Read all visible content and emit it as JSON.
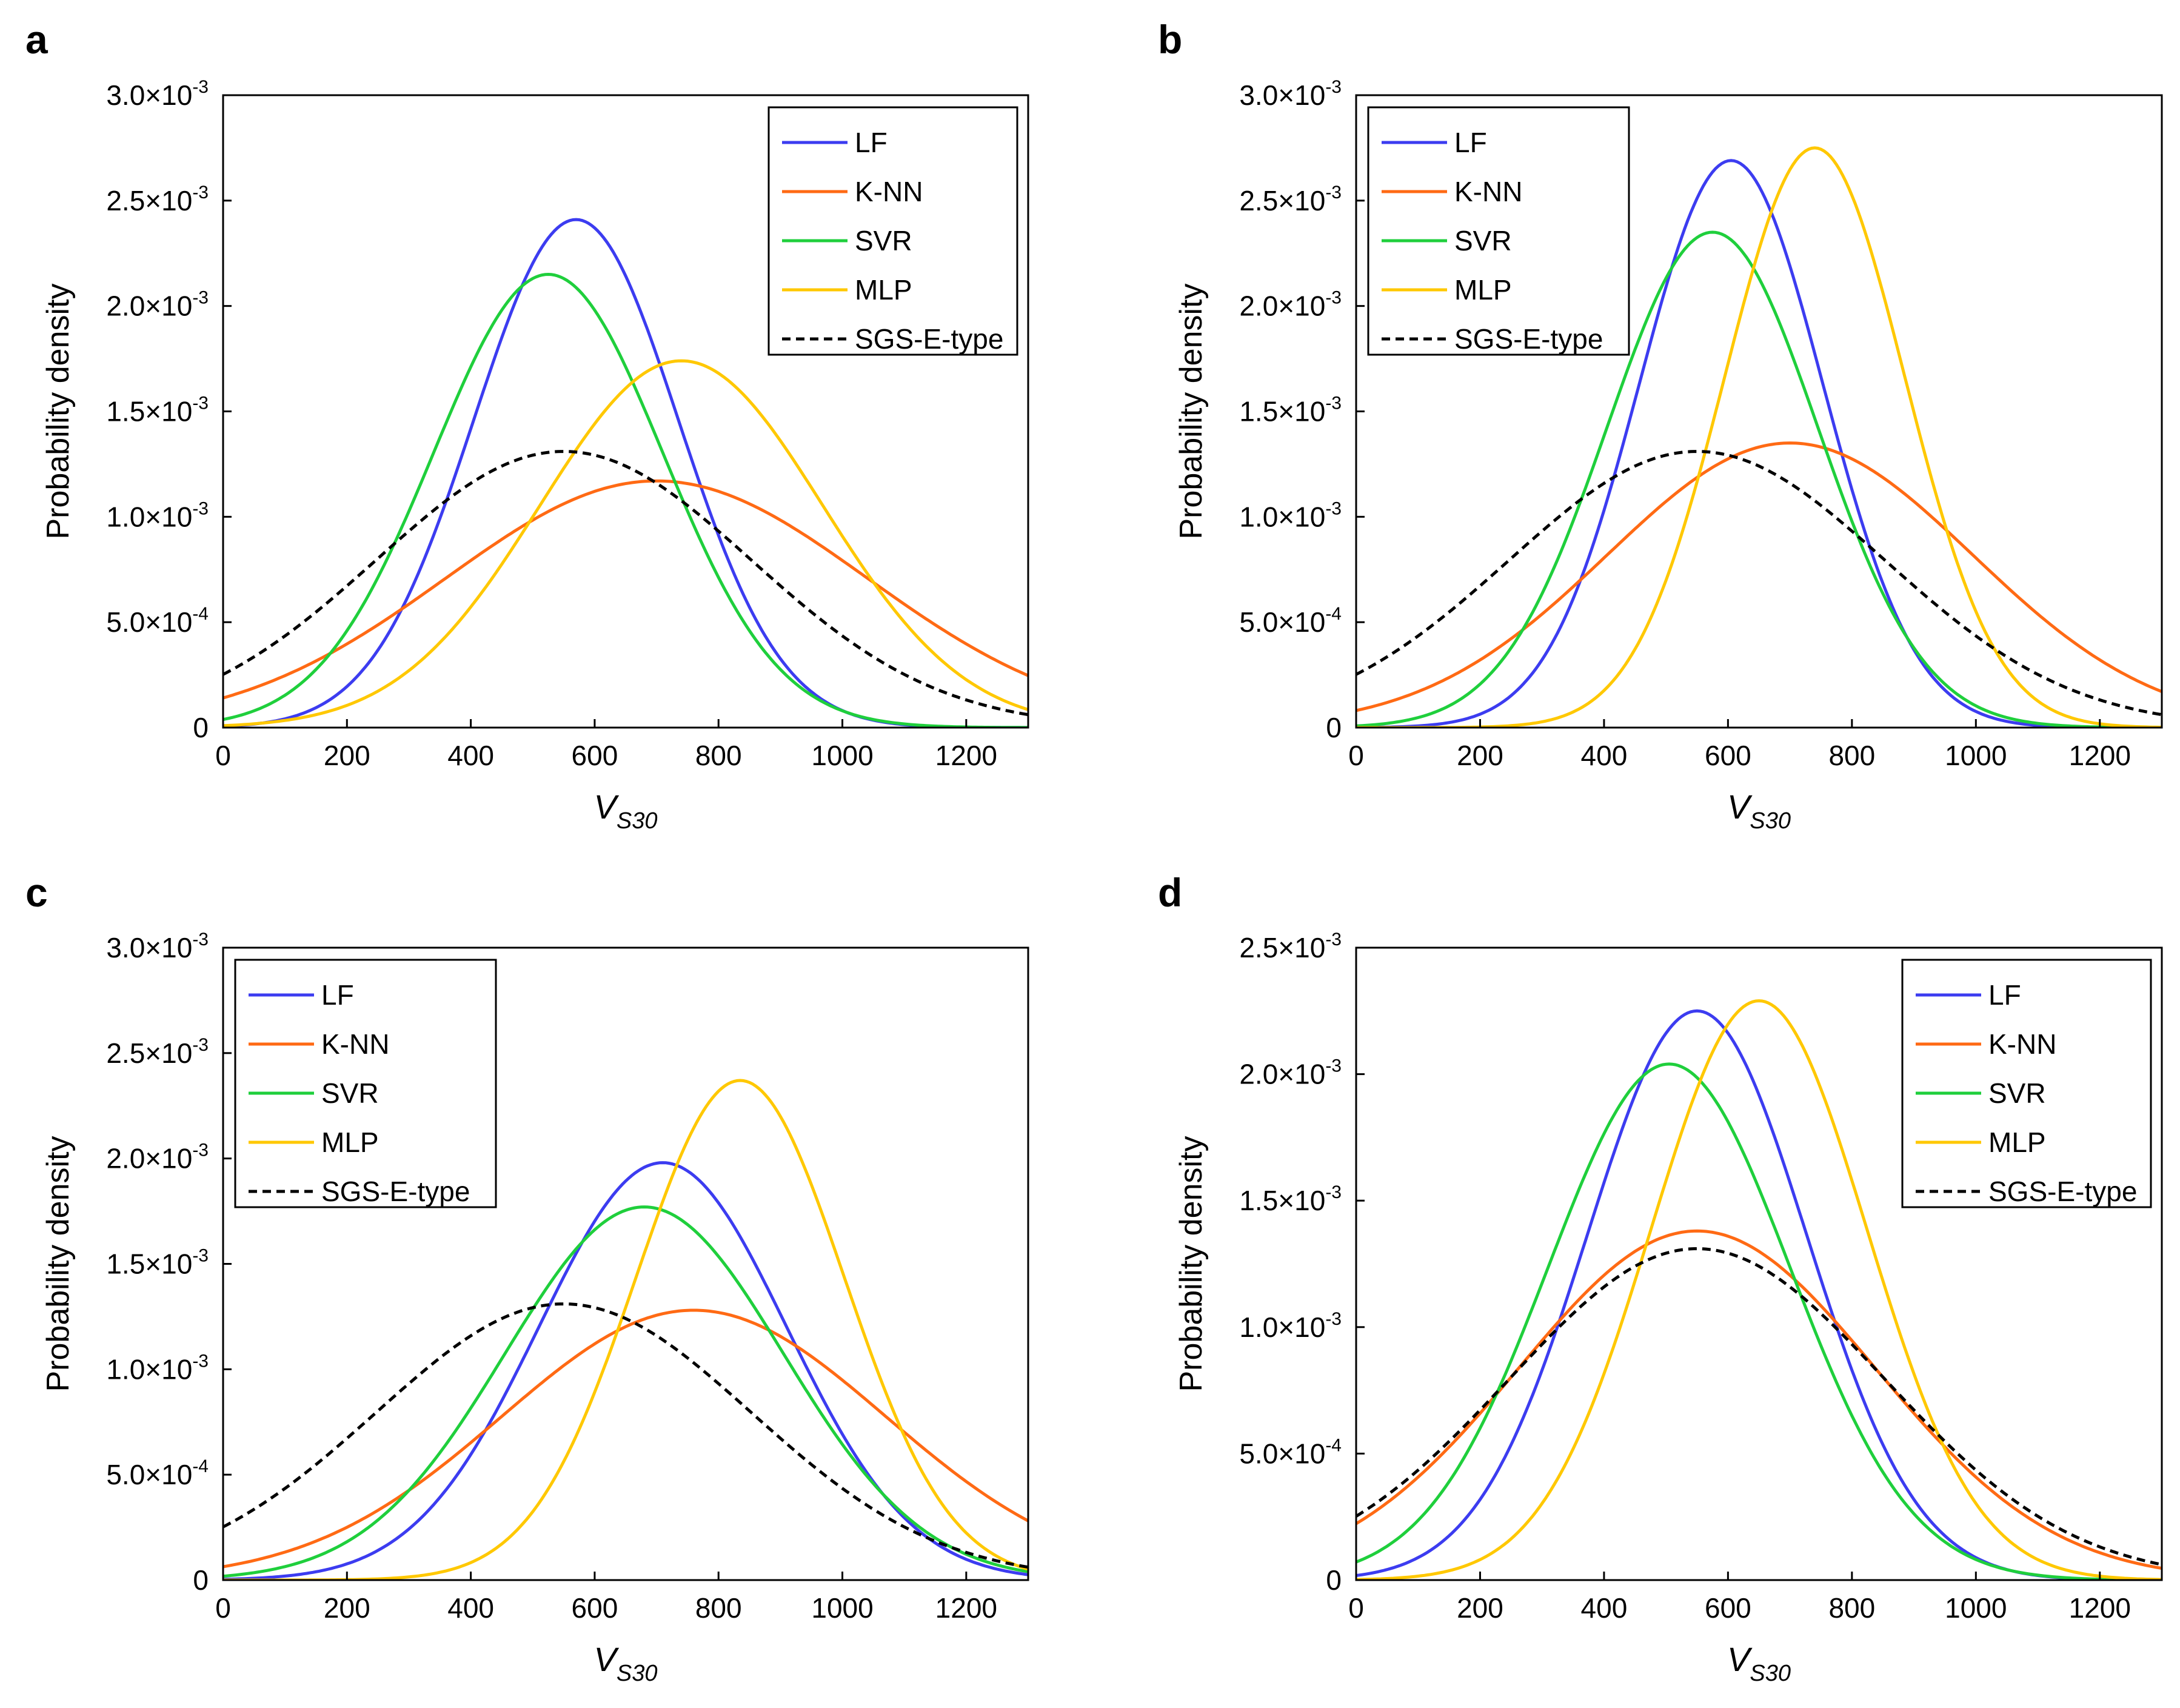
{
  "colors": {
    "LF": "#3c3cf0",
    "K-NN": "#ff6a14",
    "SVR": "#1fcf3c",
    "MLP": "#ffc800",
    "SGS-E-type": "#000000",
    "axis": "#000000"
  },
  "chart_data": [
    {
      "panel": "a",
      "type": "line",
      "xlabel": "V",
      "xlabel_sub": "S30",
      "ylabel": "Probability density",
      "xlim": [
        0,
        1300
      ],
      "ylim": [
        0,
        0.003
      ],
      "xticks": [
        0,
        200,
        400,
        600,
        800,
        1000,
        1200
      ],
      "yticks": [
        {
          "value": 0,
          "base": "0",
          "exp": ""
        },
        {
          "value": 0.0005,
          "base": "5.0×10",
          "exp": "-4"
        },
        {
          "value": 0.001,
          "base": "1.0×10",
          "exp": "-3"
        },
        {
          "value": 0.0015,
          "base": "1.5×10",
          "exp": "-3"
        },
        {
          "value": 0.002,
          "base": "2.0×10",
          "exp": "-3"
        },
        {
          "value": 0.0025,
          "base": "2.5×10",
          "exp": "-3"
        },
        {
          "value": 0.003,
          "base": "3.0×10",
          "exp": "-3"
        }
      ],
      "legend_position": "top-right",
      "series": [
        {
          "name": "LF",
          "mean": 570,
          "std": 165,
          "peak": 0.00241
        },
        {
          "name": "K-NN",
          "mean": 700,
          "std": 340,
          "peak": 0.00117
        },
        {
          "name": "SVR",
          "mean": 525,
          "std": 185,
          "peak": 0.00215
        },
        {
          "name": "MLP",
          "mean": 740,
          "std": 228,
          "peak": 0.00174
        },
        {
          "name": "SGS-E-type",
          "mean": 550,
          "std": 303,
          "peak": 0.00131
        }
      ]
    },
    {
      "panel": "b",
      "type": "line",
      "xlabel": "V",
      "xlabel_sub": "S30",
      "ylabel": "Probability density",
      "xlim": [
        0,
        1300
      ],
      "ylim": [
        0,
        0.003
      ],
      "xticks": [
        0,
        200,
        400,
        600,
        800,
        1000,
        1200
      ],
      "yticks": [
        {
          "value": 0,
          "base": "0",
          "exp": ""
        },
        {
          "value": 0.0005,
          "base": "5.0×10",
          "exp": "-4"
        },
        {
          "value": 0.001,
          "base": "1.0×10",
          "exp": "-3"
        },
        {
          "value": 0.0015,
          "base": "1.5×10",
          "exp": "-3"
        },
        {
          "value": 0.002,
          "base": "2.0×10",
          "exp": "-3"
        },
        {
          "value": 0.0025,
          "base": "2.5×10",
          "exp": "-3"
        },
        {
          "value": 0.003,
          "base": "3.0×10",
          "exp": "-3"
        }
      ],
      "legend_position": "top-left",
      "series": [
        {
          "name": "LF",
          "mean": 605,
          "std": 148,
          "peak": 0.00269
        },
        {
          "name": "K-NN",
          "mean": 700,
          "std": 295,
          "peak": 0.00135
        },
        {
          "name": "SVR",
          "mean": 575,
          "std": 170,
          "peak": 0.00235
        },
        {
          "name": "MLP",
          "mean": 740,
          "std": 145,
          "peak": 0.00275
        },
        {
          "name": "SGS-E-type",
          "mean": 550,
          "std": 303,
          "peak": 0.00131
        }
      ]
    },
    {
      "panel": "c",
      "type": "line",
      "xlabel": "V",
      "xlabel_sub": "S30",
      "ylabel": "Probability density",
      "xlim": [
        0,
        1300
      ],
      "ylim": [
        0,
        0.003
      ],
      "xticks": [
        0,
        200,
        400,
        600,
        800,
        1000,
        1200
      ],
      "yticks": [
        {
          "value": 0,
          "base": "0",
          "exp": ""
        },
        {
          "value": 0.0005,
          "base": "5.0×10",
          "exp": "-4"
        },
        {
          "value": 0.001,
          "base": "1.0×10",
          "exp": "-3"
        },
        {
          "value": 0.0015,
          "base": "1.5×10",
          "exp": "-3"
        },
        {
          "value": 0.002,
          "base": "2.0×10",
          "exp": "-3"
        },
        {
          "value": 0.0025,
          "base": "2.5×10",
          "exp": "-3"
        },
        {
          "value": 0.003,
          "base": "3.0×10",
          "exp": "-3"
        }
      ],
      "legend_position": "top-left",
      "series": [
        {
          "name": "LF",
          "mean": 710,
          "std": 200,
          "peak": 0.00198
        },
        {
          "name": "K-NN",
          "mean": 760,
          "std": 310,
          "peak": 0.00128
        },
        {
          "name": "SVR",
          "mean": 680,
          "std": 225,
          "peak": 0.00177
        },
        {
          "name": "MLP",
          "mean": 835,
          "std": 168,
          "peak": 0.00237
        },
        {
          "name": "SGS-E-type",
          "mean": 550,
          "std": 303,
          "peak": 0.00131
        }
      ]
    },
    {
      "panel": "d",
      "type": "line",
      "xlabel": "V",
      "xlabel_sub": "S30",
      "ylabel": "Probability density",
      "xlim": [
        0,
        1300
      ],
      "ylim": [
        0,
        0.0025
      ],
      "xticks": [
        0,
        200,
        400,
        600,
        800,
        1000,
        1200
      ],
      "yticks": [
        {
          "value": 0,
          "base": "0",
          "exp": ""
        },
        {
          "value": 0.0005,
          "base": "5.0×10",
          "exp": "-4"
        },
        {
          "value": 0.001,
          "base": "1.0×10",
          "exp": "-3"
        },
        {
          "value": 0.0015,
          "base": "1.5×10",
          "exp": "-3"
        },
        {
          "value": 0.002,
          "base": "2.0×10",
          "exp": "-3"
        },
        {
          "value": 0.0025,
          "base": "2.5×10",
          "exp": "-3"
        }
      ],
      "legend_position": "top-right",
      "series": [
        {
          "name": "LF",
          "mean": 550,
          "std": 177,
          "peak": 0.00225
        },
        {
          "name": "K-NN",
          "mean": 550,
          "std": 288,
          "peak": 0.00138
        },
        {
          "name": "SVR",
          "mean": 505,
          "std": 195,
          "peak": 0.00204
        },
        {
          "name": "MLP",
          "mean": 650,
          "std": 174,
          "peak": 0.00229
        },
        {
          "name": "SGS-E-type",
          "mean": 550,
          "std": 303,
          "peak": 0.00131
        }
      ]
    }
  ]
}
